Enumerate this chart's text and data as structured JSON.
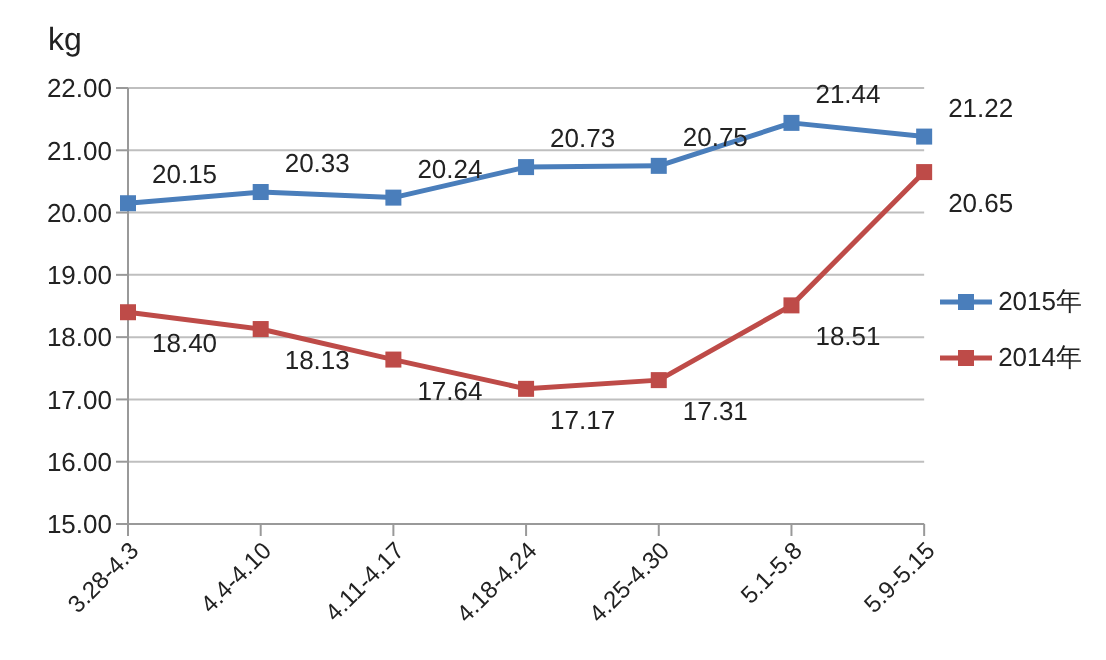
{
  "chart_data": {
    "type": "line",
    "ylabel": "kg",
    "categories": [
      "3.28-4.3",
      "4.4-4.10",
      "4.11-4.17",
      "4.18-4.24",
      "4.25-4.30",
      "5.1-5.8",
      "5.9-5.15"
    ],
    "series": [
      {
        "name": "2015年",
        "color": "#4a7ebb",
        "values": [
          20.15,
          20.33,
          20.24,
          20.73,
          20.75,
          21.44,
          21.22
        ],
        "value_labels": [
          "20.15",
          "20.33",
          "20.24",
          "20.73",
          "20.75",
          "21.44",
          "21.22"
        ]
      },
      {
        "name": "2014年",
        "color": "#be4b48",
        "values": [
          18.4,
          18.13,
          17.64,
          17.17,
          17.31,
          18.51,
          20.65
        ],
        "value_labels": [
          "18.40",
          "18.13",
          "17.64",
          "17.17",
          "17.31",
          "18.51",
          "20.65"
        ]
      }
    ],
    "ylim": [
      15,
      22
    ],
    "yticks": [
      {
        "value": 15,
        "label": "15.00"
      },
      {
        "value": 16,
        "label": "16.00"
      },
      {
        "value": 17,
        "label": "17.00"
      },
      {
        "value": 18,
        "label": "18.00"
      },
      {
        "value": 19,
        "label": "19.00"
      },
      {
        "value": 20,
        "label": "20.00"
      },
      {
        "value": 21,
        "label": "21.00"
      },
      {
        "value": 22,
        "label": "22.00"
      }
    ],
    "grid": "y",
    "legend": "right",
    "marker": "square",
    "line_style": "solid"
  }
}
